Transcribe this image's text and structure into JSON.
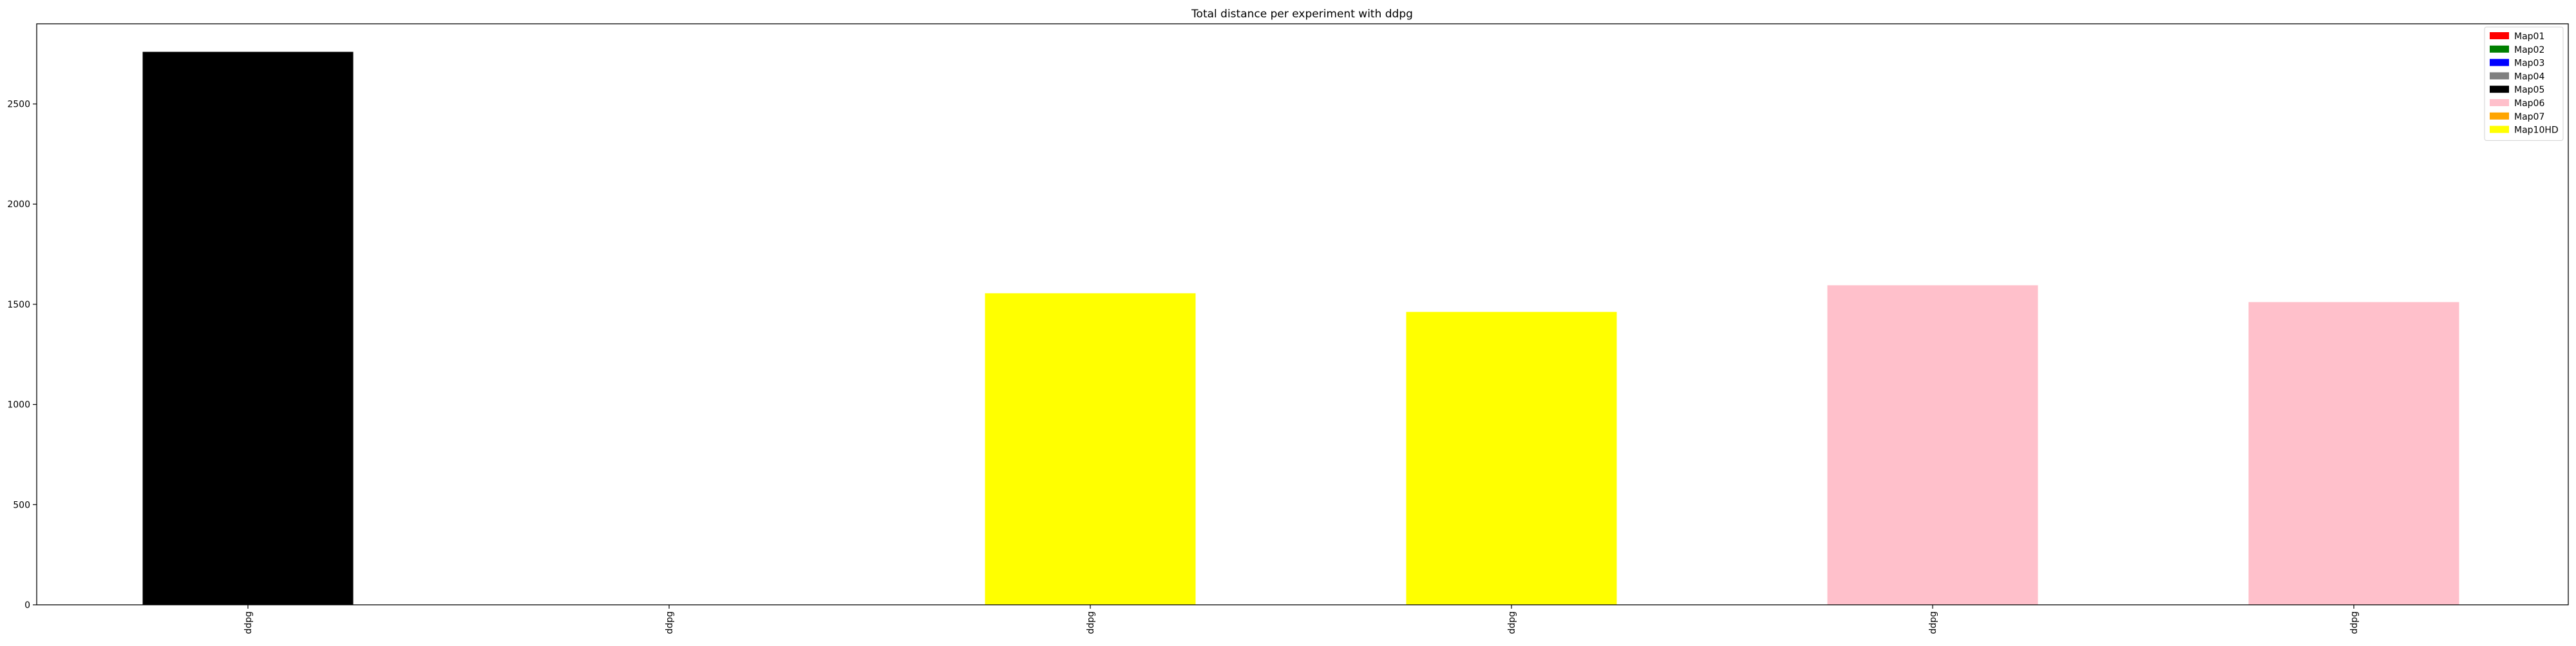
{
  "chart_data": {
    "type": "bar",
    "title": "Total distance per experiment with ddpg",
    "xlabel": "",
    "ylabel": "",
    "categories": [
      "ddpg",
      "ddpg",
      "ddpg",
      "ddpg",
      "ddpg",
      "ddpg"
    ],
    "values": [
      2760,
      0,
      1555,
      1462,
      1595,
      1511
    ],
    "bar_maps": [
      "Map05",
      "Map01",
      "Map10HD",
      "Map10HD",
      "Map06",
      "Map06"
    ],
    "ylim": [
      0,
      2900
    ],
    "yticks": [
      0,
      500,
      1000,
      1500,
      2000,
      2500
    ],
    "ytick_labels": [
      "0",
      "500",
      "1000",
      "1500",
      "2000",
      "2500"
    ],
    "grid": false,
    "legend_position": "top-right",
    "legend": [
      {
        "label": "Map01",
        "color": "#ff0000"
      },
      {
        "label": "Map02",
        "color": "#008000"
      },
      {
        "label": "Map03",
        "color": "#0000ff"
      },
      {
        "label": "Map04",
        "color": "#808080"
      },
      {
        "label": "Map05",
        "color": "#000000"
      },
      {
        "label": "Map06",
        "color": "#ffc0cb"
      },
      {
        "label": "Map07",
        "color": "#ffa500"
      },
      {
        "label": "Map10HD",
        "color": "#ffff00"
      }
    ]
  }
}
